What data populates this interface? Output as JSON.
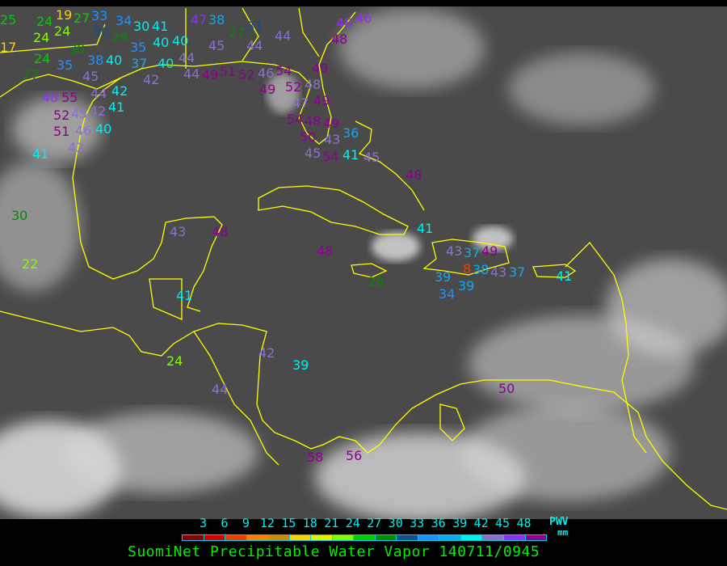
{
  "title": "SuomiNet Precipitable Water Vapor 140711/0945",
  "legend": {
    "units_top": "PWV",
    "units_bottom": "mm",
    "ticks": [
      "3",
      "6",
      "9",
      "12",
      "15",
      "18",
      "21",
      "24",
      "27",
      "30",
      "33",
      "36",
      "39",
      "42",
      "45",
      "48"
    ],
    "colors": [
      "#8b0000",
      "#d40000",
      "#f04000",
      "#ff8000",
      "#d08c00",
      "#ffd000",
      "#e8f000",
      "#80ff00",
      "#00cc00",
      "#008c00",
      "#10508c",
      "#2090ff",
      "#10a8f0",
      "#00f0f0",
      "#8c70d0",
      "#9030f0",
      "#8c0090"
    ]
  },
  "map": {
    "background": "#4a4a4a",
    "coastline_color": "#ffff00",
    "stations": [
      {
        "v": "25",
        "c": "#00cc00"
      },
      {
        "v": "24",
        "c": "#00cc00"
      },
      {
        "v": "24",
        "c": "#80ff00"
      },
      {
        "v": "24",
        "c": "#80ff00"
      },
      {
        "v": "19",
        "c": "#ffd000"
      },
      {
        "v": "27",
        "c": "#00cc00"
      },
      {
        "v": "33",
        "c": "#2090ff"
      },
      {
        "v": "30",
        "c": "#10508c"
      },
      {
        "v": "29",
        "c": "#008c00"
      },
      {
        "v": "34",
        "c": "#2090ff"
      },
      {
        "v": "35",
        "c": "#2090ff"
      },
      {
        "v": "30",
        "c": "#00f0f0"
      },
      {
        "v": "41",
        "c": "#00f0f0"
      },
      {
        "v": "40",
        "c": "#00f0f0"
      },
      {
        "v": "40",
        "c": "#00f0f0"
      },
      {
        "v": "17",
        "c": "#ffd000"
      },
      {
        "v": "30",
        "c": "#008c00"
      },
      {
        "v": "24",
        "c": "#00cc00"
      },
      {
        "v": "35",
        "c": "#2090ff"
      },
      {
        "v": "38",
        "c": "#2090ff"
      },
      {
        "v": "40",
        "c": "#00f0f0"
      },
      {
        "v": "37",
        "c": "#10a8f0"
      },
      {
        "v": "40",
        "c": "#00f0f0"
      },
      {
        "v": "44",
        "c": "#8c70d0"
      },
      {
        "v": "27",
        "c": "#008c00"
      },
      {
        "v": "45",
        "c": "#8c70d0"
      },
      {
        "v": "44",
        "c": "#8c70d0"
      },
      {
        "v": "42",
        "c": "#8c70d0"
      },
      {
        "v": "44",
        "c": "#8c70d0"
      },
      {
        "v": "49",
        "c": "#8c0090"
      },
      {
        "v": "48",
        "c": "#9030f0"
      },
      {
        "v": "55",
        "c": "#8c0090"
      },
      {
        "v": "45",
        "c": "#8c70d0"
      },
      {
        "v": "52",
        "c": "#8c0090"
      },
      {
        "v": "42",
        "c": "#8c70d0"
      },
      {
        "v": "41",
        "c": "#00f0f0"
      },
      {
        "v": "42",
        "c": "#00f0f0"
      },
      {
        "v": "46",
        "c": "#8c70d0"
      },
      {
        "v": "40",
        "c": "#00f0f0"
      },
      {
        "v": "51",
        "c": "#8c0090"
      },
      {
        "v": "42",
        "c": "#8c70d0"
      },
      {
        "v": "41",
        "c": "#00f0f0"
      },
      {
        "v": "47",
        "c": "#9030f0"
      },
      {
        "v": "38",
        "c": "#10a8f0"
      },
      {
        "v": "27",
        "c": "#008c00"
      },
      {
        "v": "31",
        "c": "#10508c"
      },
      {
        "v": "45",
        "c": "#8c70d0"
      },
      {
        "v": "44",
        "c": "#8c70d0"
      },
      {
        "v": "44",
        "c": "#8c70d0"
      },
      {
        "v": "48",
        "c": "#8c0090"
      },
      {
        "v": "48",
        "c": "#9030f0"
      },
      {
        "v": "46",
        "c": "#9030f0"
      },
      {
        "v": "51",
        "c": "#8c0090"
      },
      {
        "v": "52",
        "c": "#8c0090"
      },
      {
        "v": "46",
        "c": "#8c70d0"
      },
      {
        "v": "49",
        "c": "#8c0090"
      },
      {
        "v": "54",
        "c": "#8c0090"
      },
      {
        "v": "52",
        "c": "#8c0090"
      },
      {
        "v": "48",
        "c": "#8c70d0"
      },
      {
        "v": "49",
        "c": "#8c0090"
      },
      {
        "v": "47",
        "c": "#8c70d0"
      },
      {
        "v": "49",
        "c": "#8c0090"
      },
      {
        "v": "54",
        "c": "#8c0090"
      },
      {
        "v": "48",
        "c": "#8c0090"
      },
      {
        "v": "49",
        "c": "#8c0090"
      },
      {
        "v": "43",
        "c": "#8c70d0"
      },
      {
        "v": "36",
        "c": "#10a8f0"
      },
      {
        "v": "50",
        "c": "#8c0090"
      },
      {
        "v": "45",
        "c": "#8c70d0"
      },
      {
        "v": "54",
        "c": "#8c0090"
      },
      {
        "v": "41",
        "c": "#00f0f0"
      },
      {
        "v": "45",
        "c": "#8c70d0"
      },
      {
        "v": "48",
        "c": "#8c0090"
      },
      {
        "v": "30",
        "c": "#008c00"
      },
      {
        "v": "22",
        "c": "#80ff00"
      },
      {
        "v": "43",
        "c": "#8c70d0"
      },
      {
        "v": "48",
        "c": "#8c0090"
      },
      {
        "v": "48",
        "c": "#8c0090"
      },
      {
        "v": "41",
        "c": "#00f0f0"
      },
      {
        "v": "43",
        "c": "#8c70d0"
      },
      {
        "v": "37",
        "c": "#10a8f0"
      },
      {
        "v": "49",
        "c": "#8c0090"
      },
      {
        "v": "38",
        "c": "#10a8f0"
      },
      {
        "v": "8",
        "c": "#f04000"
      },
      {
        "v": "43",
        "c": "#8c70d0"
      },
      {
        "v": "37",
        "c": "#10a8f0"
      },
      {
        "v": "39",
        "c": "#10a8f0"
      },
      {
        "v": "39",
        "c": "#10a8f0"
      },
      {
        "v": "34",
        "c": "#2090ff"
      },
      {
        "v": "29",
        "c": "#008c00"
      },
      {
        "v": "41",
        "c": "#00f0f0"
      },
      {
        "v": "41",
        "c": "#00f0f0"
      },
      {
        "v": "24",
        "c": "#80ff00"
      },
      {
        "v": "42",
        "c": "#8c70d0"
      },
      {
        "v": "39",
        "c": "#00f0f0"
      },
      {
        "v": "44",
        "c": "#8c70d0"
      },
      {
        "v": "50",
        "c": "#8c0090"
      },
      {
        "v": "58",
        "c": "#8c0090"
      },
      {
        "v": "56",
        "c": "#8c0090"
      }
    ]
  }
}
